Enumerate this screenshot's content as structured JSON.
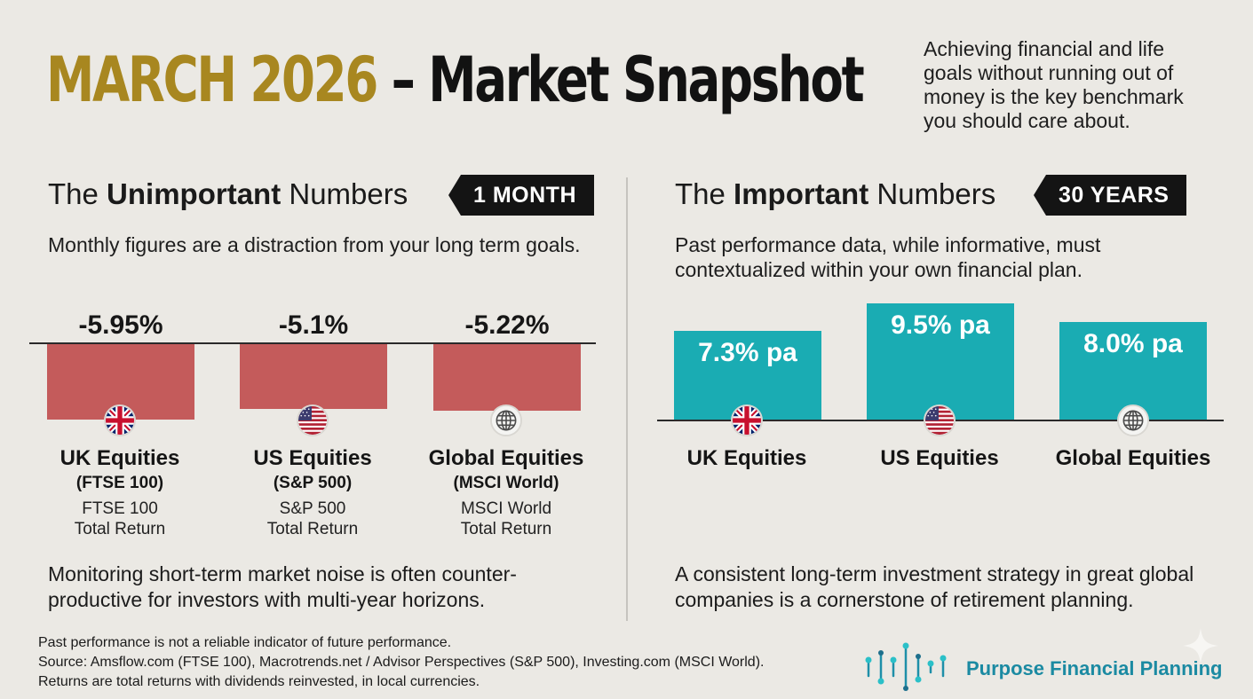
{
  "header": {
    "title_accent": "MARCH 2026",
    "title_main": "– Market Snapshot",
    "tagline": "Achieving financial and life goals without running out of money is the key benchmark you should care about."
  },
  "left_section": {
    "heading_pre": "The ",
    "heading_bold": "Unimportant",
    "heading_post": " Numbers",
    "badge": "1 MONTH",
    "subtitle": "Monthly figures are a distraction from your long term goals.",
    "bottom_note": "Monitoring short-term market noise is often counter-productive for investors with multi-year horizons."
  },
  "right_section": {
    "heading_pre": "The ",
    "heading_bold": "Important",
    "heading_post": " Numbers",
    "badge": "30 YEARS",
    "subtitle": "Past performance data, while informative, must contextualized within your own financial plan.",
    "bottom_note": "A consistent long-term investment strategy in great global companies is a cornerstone of retirement planning."
  },
  "chart_data": [
    {
      "type": "bar",
      "title": "The Unimportant Numbers",
      "period": "1 MONTH",
      "categories": [
        "UK Equities",
        "US Equities",
        "Global Equities"
      ],
      "index_names": [
        "(FTSE 100)",
        "(S&P 500)",
        "(MSCI World)"
      ],
      "descriptions": [
        "FTSE 100 Total Return",
        "S&P 500 Total Return",
        "MSCI World Total Return"
      ],
      "values": [
        -5.95,
        -5.1,
        -5.22
      ],
      "value_labels": [
        "-5.95%",
        "-5.1%",
        "-5.22%"
      ],
      "icons": [
        "uk-flag-icon",
        "us-flag-icon",
        "globe-icon"
      ],
      "unit": "%",
      "color": "#c45b5b"
    },
    {
      "type": "bar",
      "title": "The Important Numbers",
      "period": "30 YEARS",
      "categories": [
        "UK Equities",
        "US Equities",
        "Global Equities"
      ],
      "values": [
        7.3,
        9.5,
        8.0
      ],
      "value_labels": [
        "7.3% pa",
        "9.5% pa",
        "8.0% pa"
      ],
      "icons": [
        "uk-flag-icon",
        "us-flag-icon",
        "globe-icon"
      ],
      "unit": "% pa",
      "color": "#1aacb3"
    }
  ],
  "footer": {
    "disclaimer": "Past performance is not a reliable indicator of future performance.",
    "source": "Source: Amsflow.com (FTSE 100), Macrotrends.net / Advisor Perspectives (S&P 500), Investing.com (MSCI World).",
    "returns_note": "Returns are total returns with dividends reinvested, in local currencies.",
    "brand": "Purpose Financial Planning"
  },
  "colors": {
    "background": "#ebe9e4",
    "gold": "#a88720",
    "negative_bar": "#c45b5b",
    "positive_bar": "#1aacb3",
    "brand": "#1b8aa2"
  }
}
